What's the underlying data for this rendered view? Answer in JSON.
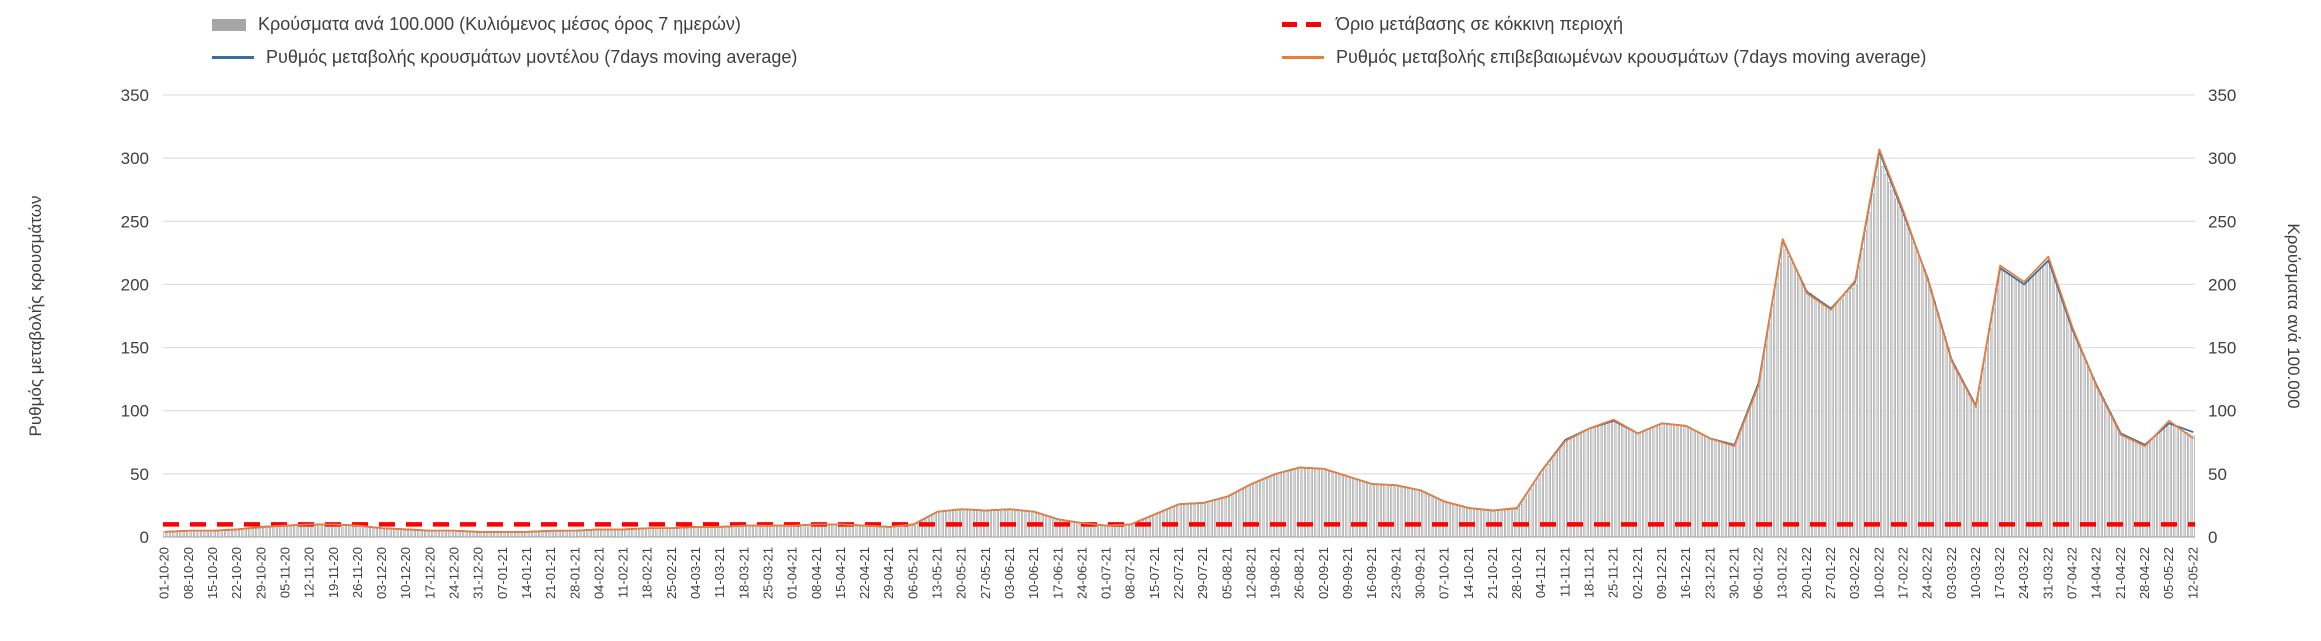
{
  "chart_data": {
    "type": "composite",
    "title": "",
    "ylabel_left": "Ρυθμός μεταβολής κρουσμάτων",
    "ylabel_right": "Κρούσματα ανά 100.000",
    "ylim": [
      0,
      350
    ],
    "yticks": [
      0,
      50,
      100,
      150,
      200,
      250,
      300,
      350
    ],
    "grid": true,
    "legend_position": "top",
    "threshold": {
      "name": "Όριο μετάβασης σε κόκκινη περιοχή",
      "value": 10,
      "color": "#ff0000",
      "style": "dashed"
    },
    "x": [
      "01-10-20",
      "08-10-20",
      "15-10-20",
      "22-10-20",
      "29-10-20",
      "05-11-20",
      "12-11-20",
      "19-11-20",
      "26-11-20",
      "03-12-20",
      "10-12-20",
      "17-12-20",
      "24-12-20",
      "31-12-20",
      "07-01-21",
      "14-01-21",
      "21-01-21",
      "28-01-21",
      "04-02-21",
      "11-02-21",
      "18-02-21",
      "25-02-21",
      "04-03-21",
      "11-03-21",
      "18-03-21",
      "25-03-21",
      "01-04-21",
      "08-04-21",
      "15-04-21",
      "22-04-21",
      "29-04-21",
      "06-05-21",
      "13-05-21",
      "20-05-21",
      "27-05-21",
      "03-06-21",
      "10-06-21",
      "17-06-21",
      "24-06-21",
      "01-07-21",
      "08-07-21",
      "15-07-21",
      "22-07-21",
      "29-07-21",
      "05-08-21",
      "12-08-21",
      "19-08-21",
      "26-08-21",
      "02-09-21",
      "09-09-21",
      "16-09-21",
      "23-09-21",
      "30-09-21",
      "07-10-21",
      "14-10-21",
      "21-10-21",
      "28-10-21",
      "04-11-21",
      "11-11-21",
      "18-11-21",
      "25-11-21",
      "02-12-21",
      "09-12-21",
      "16-12-21",
      "23-12-21",
      "30-12-21",
      "06-01-22",
      "13-01-22",
      "20-01-22",
      "27-01-22",
      "03-02-22",
      "10-02-22",
      "17-02-22",
      "24-02-22",
      "03-03-22",
      "10-03-22",
      "17-03-22",
      "24-03-22",
      "31-03-22",
      "07-04-22",
      "14-04-22",
      "21-04-22",
      "28-04-22",
      "05-05-22",
      "12-05-22"
    ],
    "series": [
      {
        "name": "Κρούσματα ανά 100.000 (Κυλιόμενος μέσος όρος 7 ημερών)",
        "type": "bar",
        "fill": "#ffffff",
        "stroke": "#a6a6a6",
        "values": [
          4,
          5,
          5,
          6,
          7,
          9,
          10,
          10,
          9,
          7,
          6,
          5,
          5,
          4,
          4,
          4,
          4,
          5,
          6,
          6,
          7,
          7,
          8,
          8,
          9,
          9,
          9,
          10,
          10,
          9,
          8,
          9,
          20,
          22,
          21,
          22,
          20,
          14,
          11,
          9,
          10,
          18,
          26,
          27,
          32,
          42,
          50,
          55,
          54,
          48,
          42,
          41,
          37,
          28,
          23,
          21,
          22,
          50,
          76,
          86,
          92,
          82,
          90,
          88,
          78,
          72,
          120,
          233,
          195,
          180,
          200,
          300,
          255,
          205,
          140,
          103,
          212,
          200,
          218,
          165,
          120,
          82,
          72,
          90,
          80
        ]
      },
      {
        "name": "Ρυθμός μεταβολής κρουσμάτων μοντέλου (7days moving average)",
        "type": "line",
        "color": "#3d6d9e",
        "values": [
          4,
          5,
          5,
          6,
          8,
          9,
          10,
          10,
          9,
          7,
          6,
          5,
          5,
          4,
          4,
          4,
          5,
          5,
          6,
          6,
          7,
          7,
          8,
          8,
          9,
          9,
          9,
          10,
          10,
          9,
          8,
          10,
          20,
          22,
          21,
          22,
          20,
          14,
          11,
          9,
          10,
          18,
          26,
          27,
          32,
          42,
          50,
          55,
          54,
          48,
          42,
          41,
          37,
          28,
          23,
          21,
          23,
          52,
          77,
          86,
          92,
          82,
          90,
          88,
          78,
          73,
          122,
          235,
          194,
          181,
          202,
          305,
          256,
          205,
          140,
          104,
          213,
          200,
          219,
          164,
          120,
          82,
          73,
          90,
          83
        ]
      },
      {
        "name": "Ρυθμός μεταβολής επιβεβαιωμένων κρουσμάτων (7days moving average)",
        "type": "line",
        "color": "#e87d3c",
        "values": [
          4,
          5,
          5,
          6,
          8,
          9,
          10,
          10,
          9,
          7,
          6,
          5,
          5,
          4,
          4,
          4,
          5,
          5,
          6,
          6,
          7,
          7,
          8,
          8,
          9,
          9,
          9,
          10,
          10,
          9,
          8,
          10,
          20,
          22,
          21,
          22,
          20,
          14,
          11,
          9,
          10,
          18,
          26,
          27,
          32,
          42,
          50,
          55,
          54,
          48,
          42,
          41,
          37,
          28,
          23,
          21,
          23,
          52,
          76,
          86,
          93,
          82,
          90,
          88,
          78,
          72,
          120,
          236,
          193,
          180,
          203,
          307,
          258,
          204,
          139,
          103,
          215,
          202,
          222,
          166,
          119,
          81,
          72,
          92,
          78
        ]
      }
    ],
    "colors": {
      "grid": "#d9d9d9",
      "axis": "#9e9e9e",
      "text": "#404040",
      "bar_stroke": "#a6a6a6",
      "model_line": "#3d6d9e",
      "confirmed_line": "#e87d3c",
      "threshold": "#ff0000"
    }
  }
}
